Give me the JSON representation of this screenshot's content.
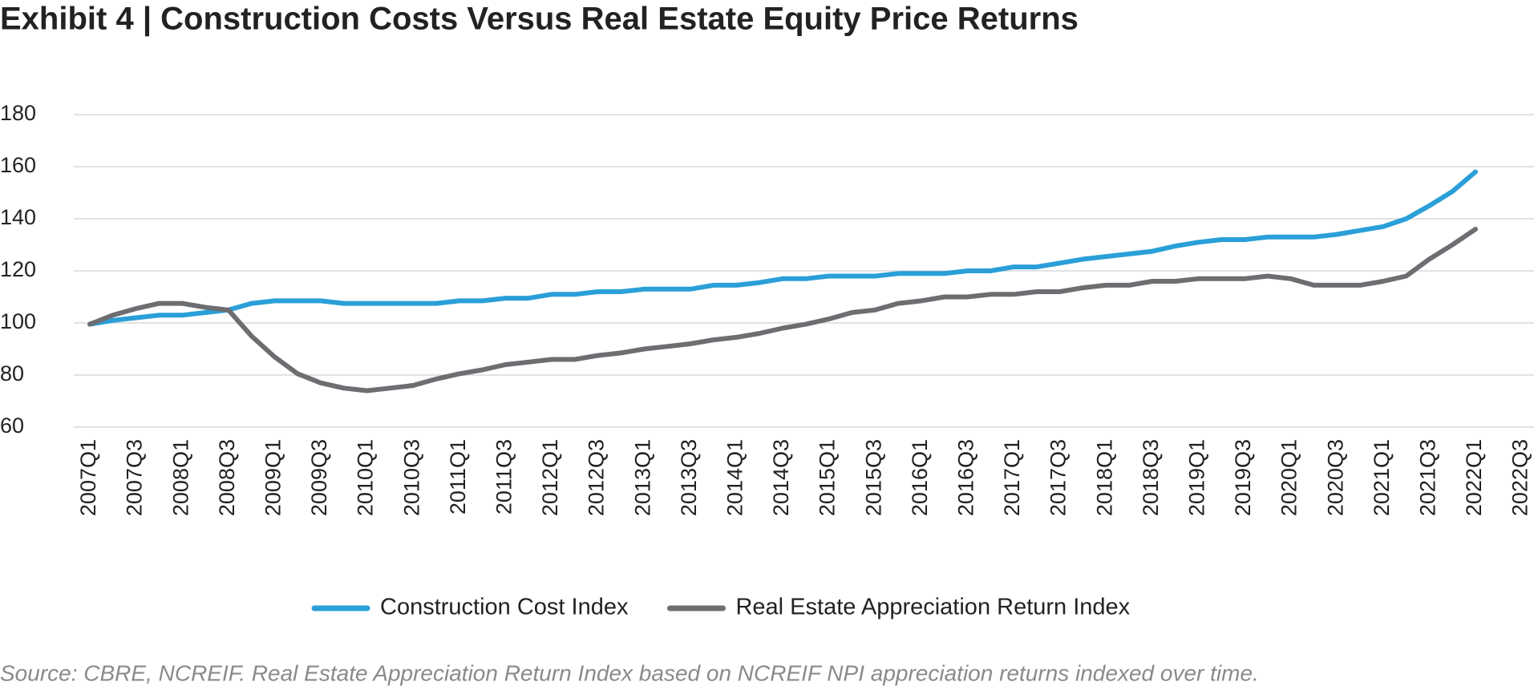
{
  "chart_data": {
    "type": "line",
    "title": "Exhibit 4  |  Construction Costs Versus Real Estate Equity Price Returns",
    "source": "Source: CBRE, NCREIF. Real Estate Appreciation Return Index based on NCREIF NPI appreciation returns indexed over time.",
    "categories": [
      "2007Q1",
      null,
      "2007Q3",
      null,
      "2008Q1",
      null,
      "2008Q3",
      null,
      "2009Q1",
      null,
      "2009Q3",
      null,
      "2010Q1",
      null,
      "2010Q3",
      null,
      "2011Q1",
      null,
      "2011Q3",
      null,
      "2012Q1",
      null,
      "2012Q3",
      null,
      "2013Q1",
      null,
      "2013Q3",
      null,
      "2014Q1",
      null,
      "2014Q3",
      null,
      "2015Q1",
      null,
      "2015Q3",
      null,
      "2016Q1",
      null,
      "2016Q3",
      null,
      "2017Q1",
      null,
      "2017Q3",
      null,
      "2018Q1",
      null,
      "2018Q3",
      null,
      "2019Q1",
      null,
      "2019Q3",
      null,
      "2020Q1",
      null,
      "2020Q3",
      null,
      "2021Q1",
      null,
      "2021Q3",
      null,
      "2022Q1",
      null,
      "2022Q3"
    ],
    "series": [
      {
        "name": "Construction Cost Index",
        "color": "#2a9fd8",
        "values": [
          99.5,
          101,
          102,
          103,
          103,
          104,
          105,
          107.5,
          108.5,
          108.5,
          108.5,
          107.5,
          107.5,
          107.5,
          107.5,
          107.5,
          108.5,
          108.5,
          109.5,
          109.5,
          111,
          111,
          112,
          112,
          113,
          113,
          113,
          114.5,
          114.5,
          115.5,
          117,
          117,
          118,
          118,
          118,
          119,
          119,
          119,
          120,
          120,
          121.5,
          121.5,
          123,
          124.5,
          125.5,
          126.5,
          127.5,
          129.5,
          131,
          132,
          132,
          133,
          133,
          133,
          134,
          135.5,
          137,
          140,
          145,
          150.5,
          158,
          null,
          null
        ]
      },
      {
        "name": "Real Estate Appreciation Return Index",
        "color": "#6d6e71",
        "values": [
          99.5,
          103,
          105.5,
          107.5,
          107.5,
          106,
          105,
          95,
          87,
          80.5,
          77,
          75,
          74,
          75,
          76,
          78.5,
          80.5,
          82,
          84,
          85,
          86,
          86,
          87.5,
          88.5,
          90,
          91,
          92,
          93.5,
          94.5,
          96,
          98,
          99.5,
          101.5,
          104,
          105,
          107.5,
          108.5,
          110,
          110,
          111,
          111,
          112,
          112,
          113.5,
          114.5,
          114.5,
          116,
          116,
          117,
          117,
          117,
          118,
          117,
          114.5,
          114.5,
          114.5,
          116,
          118,
          124.5,
          130,
          136,
          null,
          null
        ]
      }
    ],
    "ylim": [
      60,
      180
    ],
    "yticks": [
      60,
      80,
      100,
      120,
      140,
      160,
      180
    ],
    "grid": true
  }
}
